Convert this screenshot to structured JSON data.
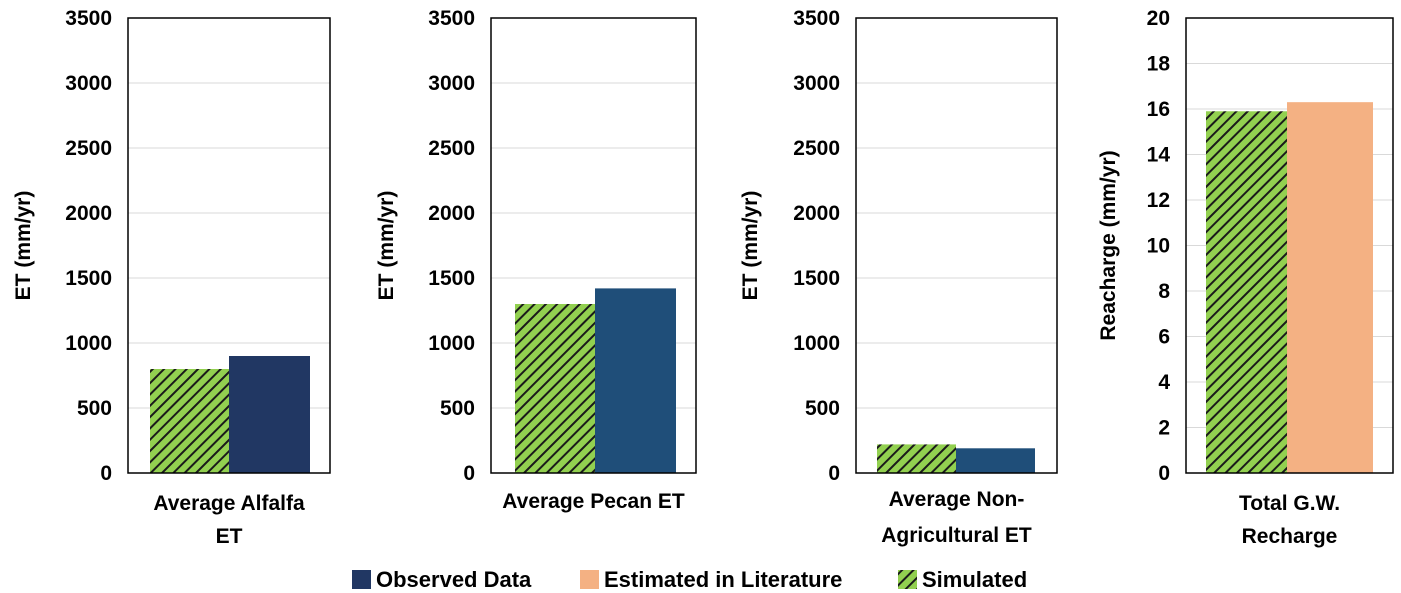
{
  "colors": {
    "observed": "#213763",
    "observed_pecan": "#1f4e79",
    "estimated": "#f4b183",
    "simulated_fill": "#92d050",
    "simulated_hatch": "#1a1a1a",
    "gridline": "#d9d9d9",
    "frame": "#000000"
  },
  "legend": [
    {
      "key": "observed",
      "label": "Observed Data",
      "fill": "#213763",
      "pattern": false
    },
    {
      "key": "estimated",
      "label": "Estimated in Literature",
      "fill": "#f4b183",
      "pattern": false
    },
    {
      "key": "simulated",
      "label": "Simulated",
      "fill": "#92d050",
      "pattern": true
    }
  ],
  "chart_data": [
    {
      "type": "bar",
      "ylabel": "ET (mm/yr)",
      "ylim": [
        0,
        3500
      ],
      "yticks": [
        "0",
        "500",
        "1000",
        "1500",
        "2000",
        "2500",
        "3000",
        "3500"
      ],
      "category_label": [
        "Average Alfalfa",
        "ET"
      ],
      "grid": true,
      "series": [
        {
          "name": "Simulated",
          "value": 800,
          "fill": "#92d050",
          "pattern": true
        },
        {
          "name": "Observed Data",
          "value": 900,
          "fill": "#213763",
          "pattern": false
        }
      ]
    },
    {
      "type": "bar",
      "ylabel": "ET (mm/yr)",
      "ylim": [
        0,
        3500
      ],
      "yticks": [
        "0",
        "500",
        "1000",
        "1500",
        "2000",
        "2500",
        "3000",
        "3500"
      ],
      "category_label": [
        "Average Pecan ET"
      ],
      "grid": true,
      "series": [
        {
          "name": "Simulated",
          "value": 1300,
          "fill": "#92d050",
          "pattern": true
        },
        {
          "name": "Observed Data",
          "value": 1420,
          "fill": "#1f4e79",
          "pattern": false
        }
      ]
    },
    {
      "type": "bar",
      "ylabel": "ET (mm/yr)",
      "ylim": [
        0,
        3500
      ],
      "yticks": [
        "0",
        "500",
        "1000",
        "1500",
        "2000",
        "2500",
        "3000",
        "3500"
      ],
      "category_label": [
        "Average Non-",
        "Agricultural ET"
      ],
      "grid": true,
      "series": [
        {
          "name": "Simulated",
          "value": 220,
          "fill": "#92d050",
          "pattern": true
        },
        {
          "name": "Observed Data",
          "value": 190,
          "fill": "#1f4e79",
          "pattern": false
        }
      ]
    },
    {
      "type": "bar",
      "ylabel": "Reacharge (mm/yr)",
      "ylim": [
        0,
        20
      ],
      "yticks": [
        "0",
        "2",
        "4",
        "6",
        "8",
        "10",
        "12",
        "14",
        "16",
        "18",
        "20"
      ],
      "category_label": [
        "Total G.W.",
        "Recharge"
      ],
      "grid": true,
      "series": [
        {
          "name": "Simulated",
          "value": 15.9,
          "fill": "#92d050",
          "pattern": true
        },
        {
          "name": "Estimated in Literature",
          "value": 16.3,
          "fill": "#f4b183",
          "pattern": false
        }
      ]
    }
  ]
}
